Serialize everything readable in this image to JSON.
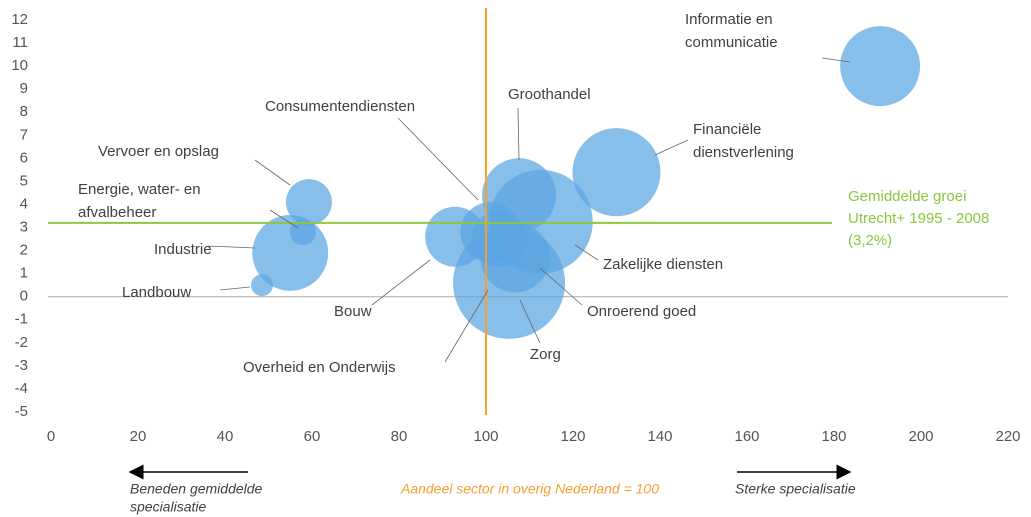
{
  "chart_data": {
    "type": "bubble",
    "color": "#5aa5e2",
    "labels": [
      [
        "Informatie en",
        "communicatie"
      ],
      [
        "Financiële",
        "dienstverlening"
      ],
      [
        "Groothandel"
      ],
      [
        "Zakelijke diensten"
      ],
      [
        "Onroerend goed"
      ],
      [
        "Zorg"
      ],
      [
        "Overheid en Onderwijs"
      ],
      [
        "Bouw"
      ],
      [
        "Consumentendiensten"
      ],
      [
        "Vervoer en opslag"
      ],
      [
        "Energie, water- en",
        "afvalbeheer"
      ],
      [
        "Industrie"
      ],
      [
        "Landbouw"
      ]
    ],
    "x": [
      190.6,
      130,
      107.6,
      112.6,
      106.7,
      105.3,
      101,
      92.9,
      103,
      59.3,
      57.9,
      55,
      48.5
    ],
    "values": [
      10.0,
      5.4,
      4.4,
      3.25,
      1.7,
      0.6,
      2.8,
      2.6,
      2.5,
      4.1,
      2.8,
      1.9,
      0.5
    ],
    "sizes": [
      160,
      194,
      137,
      270,
      122,
      314,
      90,
      90,
      78,
      53,
      17,
      144,
      12
    ],
    "xlim": [
      0,
      220
    ],
    "xticks": [
      0,
      20,
      40,
      60,
      80,
      100,
      120,
      140,
      160,
      180,
      200,
      220
    ],
    "ylim": [
      -5,
      12
    ],
    "yticks": [
      -5,
      -4,
      -3,
      -2,
      -1,
      0,
      1,
      2,
      3,
      4,
      5,
      6,
      7,
      8,
      9,
      10,
      11,
      12
    ],
    "hline": {
      "value": 3.2,
      "color": "#8dc63f",
      "label": [
        "Gemiddelde groei",
        "Utrecht+ 1995 - 2008",
        "(3,2%)"
      ]
    },
    "vline": {
      "value": 100,
      "color": "#f7a030"
    },
    "xlabel": "Aandeel sector in overig Nederland = 100",
    "annotation_left": [
      "Beneden gemiddelde",
      "specialisatie"
    ],
    "annotation_right": "Sterke specialisatie"
  }
}
